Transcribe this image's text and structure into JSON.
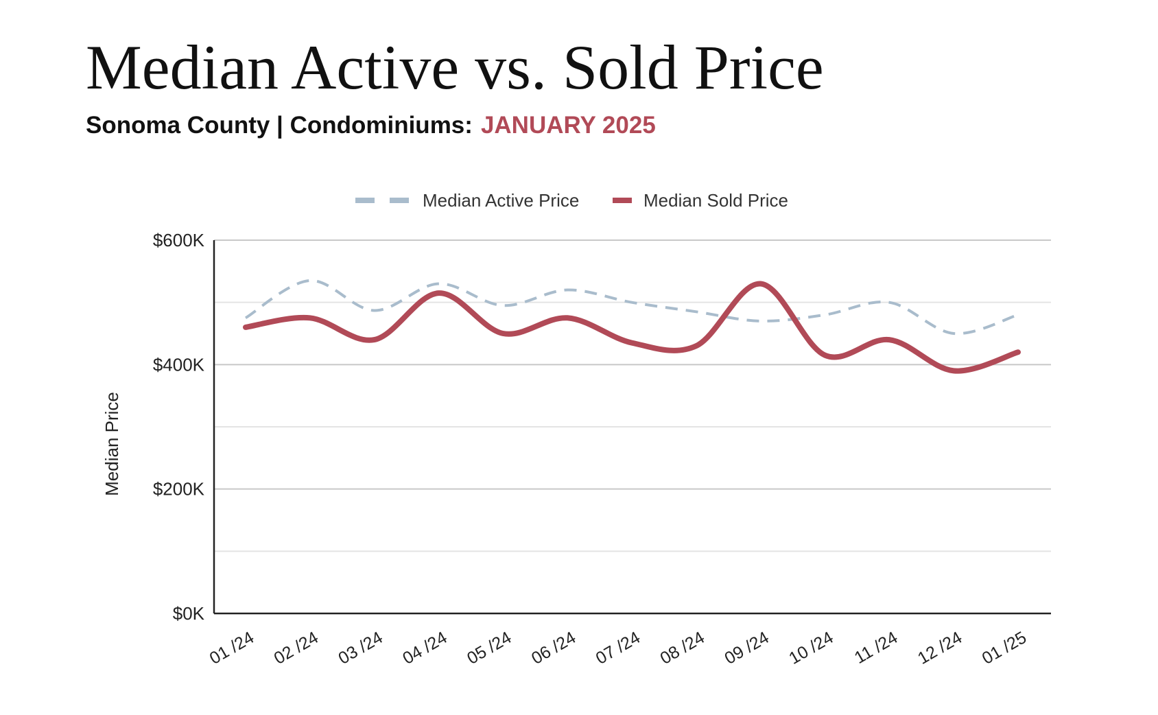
{
  "page": {
    "title": "Median Active vs. Sold Price",
    "subtitle_prefix": "Sonoma County | Condominiums:",
    "subtitle_period": "JANUARY 2025"
  },
  "colors": {
    "accent": "#b14a57",
    "active_series": "#a9bccc",
    "sold_series": "#b14a57",
    "text": "#111111",
    "gridline": "#d4d4d4",
    "axis": "#222222"
  },
  "chart_data": {
    "type": "line",
    "title": "Median Active vs. Sold Price",
    "subtitle": "Sonoma County | Condominiums: JANUARY 2025",
    "xlabel": "",
    "ylabel": "Median Price",
    "categories": [
      "01 /24",
      "02 /24",
      "03 /24",
      "04 /24",
      "05 /24",
      "06 /24",
      "07 /24",
      "08 /24",
      "09 /24",
      "10 /24",
      "11 /24",
      "12 /24",
      "01 /25"
    ],
    "series": [
      {
        "name": "Median Active Price",
        "style": "dashed",
        "color": "#a9bccc",
        "values": [
          475000,
          535000,
          487000,
          530000,
          495000,
          520000,
          500000,
          485000,
          470000,
          480000,
          500000,
          450000,
          480000
        ]
      },
      {
        "name": "Median Sold Price",
        "style": "solid",
        "color": "#b14a57",
        "values": [
          460000,
          475000,
          440000,
          515000,
          450000,
          475000,
          435000,
          430000,
          530000,
          415000,
          440000,
          390000,
          420000
        ]
      }
    ],
    "yticks": [
      0,
      200000,
      400000,
      600000
    ],
    "ytick_labels": [
      "$0K",
      "$200K",
      "$400K",
      "$600K"
    ],
    "ylim": [
      0,
      600000
    ],
    "grid": true,
    "minor_grid": true,
    "legend_position": "top-center"
  }
}
